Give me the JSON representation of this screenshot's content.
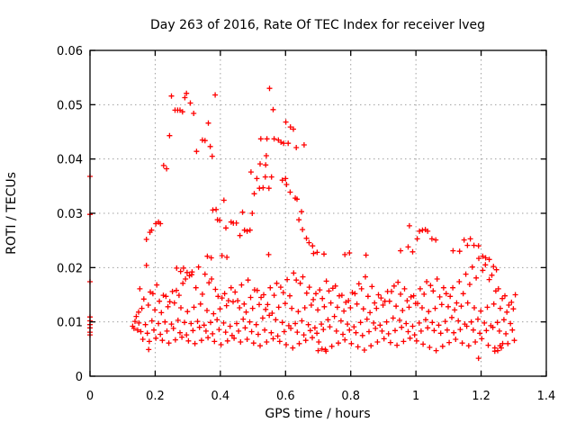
{
  "window": {
    "background": "#ffffff"
  },
  "chart_data": {
    "type": "scatter",
    "title": "Day 263 of 2016, Rate Of TEC Index for receiver lveg",
    "xlabel": "GPS time / hours",
    "ylabel": "ROTI / TECUs",
    "xlim": [
      0,
      1.4
    ],
    "ylim": [
      0,
      0.06
    ],
    "xticks": [
      0,
      0.2,
      0.4,
      0.6,
      0.8,
      1,
      1.2,
      1.4
    ],
    "xtick_labels": [
      "0",
      "0.2",
      "0.4",
      "0.6",
      "0.8",
      "1",
      "1.2",
      "1.4"
    ],
    "yticks": [
      0,
      0.01,
      0.02,
      0.03,
      0.04,
      0.05,
      0.06
    ],
    "ytick_labels": [
      "0",
      "0.01",
      "0.02",
      "0.03",
      "0.04",
      "0.05",
      "0.06"
    ],
    "grid": {
      "on": true,
      "color": "#a0a0a0",
      "style": "dotted"
    },
    "border_color": "#000000",
    "marker": {
      "shape": "plus",
      "color": "#ff0000",
      "size": 7
    },
    "legend": "none",
    "points": [
      [
        0,
        0.0368
      ],
      [
        0,
        0.0298
      ],
      [
        0,
        0.0174
      ],
      [
        0,
        0.0109
      ],
      [
        0,
        0.0102
      ],
      [
        0,
        0.0095
      ],
      [
        0,
        0.0089
      ],
      [
        0,
        0.0081
      ],
      [
        0,
        0.0076
      ],
      [
        0.131,
        0.0092
      ],
      [
        0.135,
        0.0088
      ],
      [
        0.138,
        0.0101
      ],
      [
        0.142,
        0.011
      ],
      [
        0.146,
        0.0085
      ],
      [
        0.149,
        0.0118
      ],
      [
        0.18,
        0.0049
      ],
      [
        0.173,
        0.0252
      ],
      [
        0.184,
        0.0265
      ],
      [
        0.189,
        0.0269
      ],
      [
        0.202,
        0.0281
      ],
      [
        0.21,
        0.0284
      ],
      [
        0.216,
        0.0281
      ],
      [
        0.226,
        0.0388
      ],
      [
        0.235,
        0.0382
      ],
      [
        0.244,
        0.0443
      ],
      [
        0.25,
        0.0516
      ],
      [
        0.261,
        0.049
      ],
      [
        0.269,
        0.049
      ],
      [
        0.276,
        0.049
      ],
      [
        0.284,
        0.0487
      ],
      [
        0.291,
        0.0513
      ],
      [
        0.296,
        0.0521
      ],
      [
        0.308,
        0.0503
      ],
      [
        0.318,
        0.0484
      ],
      [
        0.327,
        0.0414
      ],
      [
        0.345,
        0.0435
      ],
      [
        0.353,
        0.0434
      ],
      [
        0.363,
        0.0466
      ],
      [
        0.369,
        0.0423
      ],
      [
        0.375,
        0.0405
      ],
      [
        0.384,
        0.0518
      ],
      [
        0.266,
        0.0199
      ],
      [
        0.278,
        0.0193
      ],
      [
        0.287,
        0.0199
      ],
      [
        0.298,
        0.0191
      ],
      [
        0.312,
        0.0187
      ],
      [
        0.36,
        0.0221
      ],
      [
        0.372,
        0.0218
      ],
      [
        0.377,
        0.0306
      ],
      [
        0.387,
        0.0307
      ],
      [
        0.391,
        0.0288
      ],
      [
        0.398,
        0.0287
      ],
      [
        0.405,
        0.0222
      ],
      [
        0.411,
        0.0324
      ],
      [
        0.417,
        0.0273
      ],
      [
        0.42,
        0.0219
      ],
      [
        0.433,
        0.0284
      ],
      [
        0.44,
        0.0282
      ],
      [
        0.449,
        0.0282
      ],
      [
        0.46,
        0.0259
      ],
      [
        0.468,
        0.0302
      ],
      [
        0.474,
        0.0269
      ],
      [
        0.482,
        0.0267
      ],
      [
        0.491,
        0.0269
      ],
      [
        0.498,
        0.03
      ],
      [
        0.494,
        0.0376
      ],
      [
        0.504,
        0.0336
      ],
      [
        0.512,
        0.0364
      ],
      [
        0.52,
        0.0346
      ],
      [
        0.522,
        0.0391
      ],
      [
        0.524,
        0.0437
      ],
      [
        0.531,
        0.0347
      ],
      [
        0.538,
        0.0367
      ],
      [
        0.539,
        0.0389
      ],
      [
        0.541,
        0.0406
      ],
      [
        0.543,
        0.0437
      ],
      [
        0.549,
        0.0346
      ],
      [
        0.551,
        0.053
      ],
      [
        0.557,
        0.0367
      ],
      [
        0.562,
        0.0491
      ],
      [
        0.565,
        0.0437
      ],
      [
        0.578,
        0.0435
      ],
      [
        0.586,
        0.0431
      ],
      [
        0.59,
        0.0361
      ],
      [
        0.594,
        0.0429
      ],
      [
        0.6,
        0.0364
      ],
      [
        0.601,
        0.0468
      ],
      [
        0.603,
        0.0353
      ],
      [
        0.608,
        0.0429
      ],
      [
        0.614,
        0.0339
      ],
      [
        0.615,
        0.0459
      ],
      [
        0.624,
        0.0455
      ],
      [
        0.63,
        0.0328
      ],
      [
        0.633,
        0.0421
      ],
      [
        0.635,
        0.0326
      ],
      [
        0.649,
        0.0303
      ],
      [
        0.657,
        0.0426
      ],
      [
        0.641,
        0.0288
      ],
      [
        0.652,
        0.027
      ],
      [
        0.664,
        0.0254
      ],
      [
        0.672,
        0.0246
      ],
      [
        0.683,
        0.024
      ],
      [
        0.548,
        0.0224
      ],
      [
        0.686,
        0.0226
      ],
      [
        0.697,
        0.0228
      ],
      [
        0.718,
        0.0225
      ],
      [
        0.782,
        0.0224
      ],
      [
        0.796,
        0.0227
      ],
      [
        0.847,
        0.0223
      ],
      [
        0.7,
        0.0047
      ],
      [
        0.712,
        0.005
      ],
      [
        0.724,
        0.0046
      ],
      [
        0.953,
        0.0231
      ],
      [
        0.976,
        0.0238
      ],
      [
        0.98,
        0.0277
      ],
      [
        0.99,
        0.0229
      ],
      [
        1.004,
        0.0253
      ],
      [
        1.011,
        0.0267
      ],
      [
        1.02,
        0.0269
      ],
      [
        1.029,
        0.027
      ],
      [
        1.036,
        0.0267
      ],
      [
        1.049,
        0.0253
      ],
      [
        1.061,
        0.0251
      ],
      [
        1.114,
        0.0231
      ],
      [
        1.134,
        0.023
      ],
      [
        1.148,
        0.0251
      ],
      [
        1.158,
        0.0241
      ],
      [
        1.167,
        0.0253
      ],
      [
        1.178,
        0.0241
      ],
      [
        1.192,
        0.024
      ],
      [
        1.205,
        0.0221
      ],
      [
        1.214,
        0.0218
      ],
      [
        1.225,
        0.0215
      ],
      [
        1.238,
        0.0202
      ],
      [
        1.247,
        0.0196
      ],
      [
        1.192,
        0.0033
      ],
      [
        1.242,
        0.0052
      ],
      [
        1.251,
        0.0047
      ],
      [
        1.258,
        0.0056
      ],
      [
        1.266,
        0.006
      ]
    ],
    "band_tracks": [
      {
        "x0": 0.15,
        "dx": 0.02,
        "y": [
          0.0098,
          0.0095,
          0.0102,
          0.0097,
          0.01,
          0.0096,
          0.0103,
          0.0099,
          0.0097,
          0.0101,
          0.0094,
          0.0099,
          0.0104,
          0.0098,
          0.0092,
          0.0097,
          0.0105,
          0.01,
          0.0095,
          0.0107,
          0.0112,
          0.0104,
          0.0099,
          0.0093,
          0.0097,
          0.0102,
          0.0095,
          0.0089,
          0.0096,
          0.0104,
          0.011,
          0.0102,
          0.0096,
          0.0091,
          0.0099,
          0.0105,
          0.0098,
          0.0094,
          0.01,
          0.0107,
          0.0103,
          0.0097,
          0.0092,
          0.0098,
          0.0104,
          0.0099,
          0.0094,
          0.0101,
          0.0108,
          0.0102,
          0.0096,
          0.01,
          0.0105,
          0.0098,
          0.0093,
          0.0099,
          0.0104,
          0.0097
        ]
      },
      {
        "x0": 0.153,
        "dx": 0.02,
        "y": [
          0.0161,
          0.0204,
          0.0152,
          0.0138,
          0.0147,
          0.0156,
          0.0149,
          0.0179,
          0.0192,
          0.0201,
          0.0188,
          0.0179,
          0.0147,
          0.0152,
          0.0163,
          0.0139,
          0.0133,
          0.0145,
          0.0158,
          0.015,
          0.0163,
          0.0171,
          0.0154,
          0.0148,
          0.0177,
          0.0183,
          0.0164,
          0.0152,
          0.0143,
          0.0157,
          0.0166,
          0.0149,
          0.0139,
          0.0152,
          0.0161,
          0.0147,
          0.0135,
          0.0144,
          0.0156,
          0.0166,
          0.0151,
          0.0139,
          0.0148,
          0.0161,
          0.0174,
          0.0157,
          0.0146,
          0.0152,
          0.0163,
          0.0174,
          0.0188,
          0.0201,
          0.0217,
          0.0205,
          0.0186,
          0.0161,
          0.0148,
          0.0136
        ]
      },
      {
        "x0": 0.156,
        "dx": 0.02,
        "y": [
          0.0082,
          0.0079,
          0.0085,
          0.0077,
          0.0083,
          0.0088,
          0.008,
          0.0076,
          0.0084,
          0.009,
          0.0083,
          0.0078,
          0.0086,
          0.0081,
          0.0075,
          0.0083,
          0.0089,
          0.0082,
          0.0077,
          0.0085,
          0.008,
          0.0074,
          0.0082,
          0.0088,
          0.0081,
          0.0076,
          0.0084,
          0.0079,
          0.0086,
          0.0091,
          0.0083,
          0.0077,
          0.0085,
          0.008,
          0.0075,
          0.0082,
          0.0088,
          0.0083,
          0.0078,
          0.0084,
          0.009,
          0.0082,
          0.0076,
          0.0083,
          0.0089,
          0.0084,
          0.0079,
          0.0085,
          0.008,
          0.0086,
          0.0092,
          0.0085,
          0.0079,
          0.0084,
          0.009,
          0.0083,
          0.0078,
          0.0085
        ]
      },
      {
        "x0": 0.159,
        "dx": 0.02,
        "y": [
          0.0125,
          0.0131,
          0.0122,
          0.0117,
          0.0128,
          0.0135,
          0.0126,
          0.0119,
          0.0127,
          0.0133,
          0.0121,
          0.0115,
          0.0124,
          0.013,
          0.0137,
          0.0126,
          0.0118,
          0.0125,
          0.0132,
          0.0123,
          0.0116,
          0.0127,
          0.0134,
          0.0125,
          0.0119,
          0.0126,
          0.0131,
          0.0122,
          0.0128,
          0.0135,
          0.0127,
          0.012,
          0.0126,
          0.0133,
          0.0124,
          0.0117,
          0.0125,
          0.0131,
          0.0138,
          0.0129,
          0.0121,
          0.0127,
          0.0134,
          0.0126,
          0.0119,
          0.0125,
          0.0132,
          0.0128,
          0.0122,
          0.0129,
          0.0135,
          0.0126,
          0.012,
          0.0127,
          0.0133,
          0.0125,
          0.0118,
          0.0124
        ]
      },
      {
        "x0": 0.162,
        "dx": 0.02,
        "y": [
          0.0068,
          0.0064,
          0.007,
          0.0066,
          0.0061,
          0.0067,
          0.0072,
          0.0065,
          0.006,
          0.0066,
          0.0071,
          0.0064,
          0.0058,
          0.0065,
          0.007,
          0.0063,
          0.0068,
          0.0061,
          0.0056,
          0.0063,
          0.0069,
          0.0064,
          0.0058,
          0.0052,
          0.006,
          0.0066,
          0.0071,
          0.0063,
          0.0049,
          0.0055,
          0.0061,
          0.0067,
          0.006,
          0.0054,
          0.0048,
          0.0056,
          0.0063,
          0.0069,
          0.0062,
          0.0057,
          0.0064,
          0.007,
          0.0065,
          0.0059,
          0.0053,
          0.0047,
          0.0055,
          0.0062,
          0.0068,
          0.0061,
          0.0056,
          0.0063,
          0.0069,
          0.0057,
          0.0046,
          0.0052,
          0.006,
          0.0066
        ]
      },
      {
        "x0": 0.165,
        "dx": 0.02,
        "y": [
          0.0142,
          0.0155,
          0.0168,
          0.0149,
          0.0137,
          0.0158,
          0.0171,
          0.0185,
          0.0163,
          0.0151,
          0.0172,
          0.016,
          0.0144,
          0.0139,
          0.0155,
          0.0168,
          0.0177,
          0.0159,
          0.0145,
          0.0132,
          0.0149,
          0.0164,
          0.0178,
          0.019,
          0.0171,
          0.0153,
          0.0141,
          0.0159,
          0.0175,
          0.0162,
          0.0148,
          0.0136,
          0.0154,
          0.017,
          0.0183,
          0.0165,
          0.015,
          0.0138,
          0.0156,
          0.0173,
          0.0161,
          0.0146,
          0.0134,
          0.0151,
          0.0167,
          0.0179,
          0.0163,
          0.0147,
          0.0135,
          0.0152,
          0.0169,
          0.0181,
          0.0195,
          0.0178,
          0.0157,
          0.0143,
          0.0131,
          0.015
        ]
      }
    ]
  }
}
